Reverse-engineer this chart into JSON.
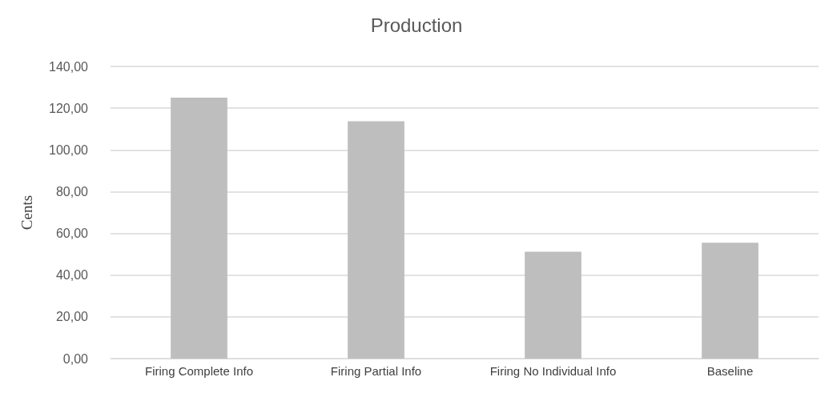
{
  "chart_data": {
    "type": "bar",
    "title": "Production",
    "ylabel": "Cents",
    "categories": [
      "Firing Complete Info",
      "Firing Partial Info",
      "Firing No Individual Info",
      "Baseline"
    ],
    "values": [
      125,
      113.7,
      51.2,
      55.5
    ],
    "color": "#bebebe",
    "ylim": [
      0,
      140
    ],
    "yticks": [
      {
        "value": 0,
        "label": "0,00"
      },
      {
        "value": 20,
        "label": "20,00"
      },
      {
        "value": 40,
        "label": "40,00"
      },
      {
        "value": 60,
        "label": "60,00"
      },
      {
        "value": 80,
        "label": "80,00"
      },
      {
        "value": 100,
        "label": "100,00"
      },
      {
        "value": 120,
        "label": "120,00"
      },
      {
        "value": 140,
        "label": "140,00"
      }
    ],
    "grid": "y"
  }
}
